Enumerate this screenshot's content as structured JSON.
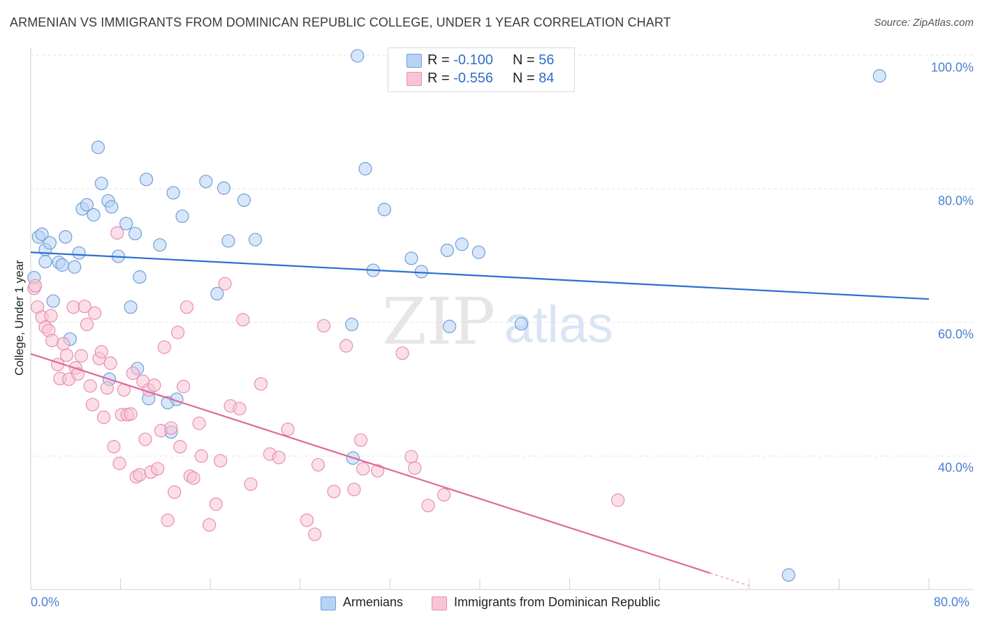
{
  "header": {
    "title": "ARMENIAN VS IMMIGRANTS FROM DOMINICAN REPUBLIC COLLEGE, UNDER 1 YEAR CORRELATION CHART",
    "source": "Source: ZipAtlas.com"
  },
  "watermark": {
    "zip": "ZIP",
    "atlas": "atlas"
  },
  "legend": {
    "rows": [
      {
        "r_label": "R = ",
        "r_value": "-0.100",
        "n_label": "N = ",
        "n_value": "56"
      },
      {
        "r_label": "R = ",
        "r_value": "-0.556",
        "n_label": "N = ",
        "n_value": "84"
      }
    ]
  },
  "bottom_legend": {
    "series1": "Armenians",
    "series2": "Immigrants from Dominican Republic"
  },
  "axes": {
    "ylabel": "College, Under 1 year",
    "yticks": [
      "100.0%",
      "80.0%",
      "60.0%",
      "40.0%"
    ],
    "xticks": [
      "0.0%",
      "80.0%"
    ]
  },
  "colors": {
    "blue_fill": "#b8d2f4",
    "blue_stroke": "#6f9fd8",
    "blue_line": "#2a6fcf",
    "pink_fill": "#f8c5d6",
    "pink_stroke": "#e98eae",
    "pink_line": "#e0679a",
    "tick_text": "#4a7fd4"
  },
  "chart_data": {
    "type": "scatter",
    "xlim": [
      0,
      80
    ],
    "ylim": [
      21,
      104
    ],
    "grid": true,
    "legend_position": "top-center",
    "series": [
      {
        "name": "Armenians",
        "color": "blue",
        "trend": {
          "x": [
            0,
            80
          ],
          "y": [
            70.5,
            63.5
          ]
        },
        "points": [
          [
            0.3,
            66.7
          ],
          [
            0.7,
            72.8
          ],
          [
            1.0,
            73.2
          ],
          [
            1.3,
            70.9
          ],
          [
            1.7,
            71.9
          ],
          [
            2.0,
            63.2
          ],
          [
            2.5,
            69.0
          ],
          [
            2.8,
            68.6
          ],
          [
            3.1,
            72.8
          ],
          [
            3.5,
            57.5
          ],
          [
            3.9,
            68.3
          ],
          [
            4.3,
            70.4
          ],
          [
            4.6,
            77.0
          ],
          [
            5.0,
            77.6
          ],
          [
            5.6,
            76.1
          ],
          [
            6.0,
            86.2
          ],
          [
            6.3,
            80.8
          ],
          [
            6.9,
            78.2
          ],
          [
            7.2,
            77.3
          ],
          [
            7.8,
            69.9
          ],
          [
            8.5,
            74.8
          ],
          [
            8.9,
            62.3
          ],
          [
            9.3,
            73.3
          ],
          [
            9.7,
            66.8
          ],
          [
            10.3,
            81.4
          ],
          [
            11.5,
            71.6
          ],
          [
            12.7,
            79.4
          ],
          [
            13.5,
            75.9
          ],
          [
            15.6,
            81.1
          ],
          [
            16.6,
            64.3
          ],
          [
            17.2,
            80.1
          ],
          [
            17.6,
            72.2
          ],
          [
            19.0,
            78.3
          ],
          [
            20.0,
            72.4
          ],
          [
            29.8,
            83.0
          ],
          [
            30.5,
            67.8
          ],
          [
            28.6,
            59.7
          ],
          [
            29.1,
            99.9
          ],
          [
            31.5,
            76.9
          ],
          [
            33.9,
            69.6
          ],
          [
            34.8,
            67.6
          ],
          [
            37.1,
            70.8
          ],
          [
            38.4,
            71.7
          ],
          [
            39.9,
            70.5
          ],
          [
            37.3,
            59.4
          ],
          [
            43.7,
            59.8
          ],
          [
            7.0,
            51.5
          ],
          [
            9.5,
            53.1
          ],
          [
            10.5,
            48.6
          ],
          [
            12.2,
            48.0
          ],
          [
            13.0,
            48.5
          ],
          [
            12.5,
            43.6
          ],
          [
            28.7,
            39.7
          ],
          [
            75.6,
            96.9
          ],
          [
            67.5,
            22.2
          ],
          [
            1.3,
            69.1
          ]
        ]
      },
      {
        "name": "Immigrants from Dominican Republic",
        "color": "pink",
        "trend": {
          "x": [
            0,
            60.5
          ],
          "y": [
            55.3,
            22.5
          ]
        },
        "points": [
          [
            0.3,
            65.1
          ],
          [
            0.6,
            62.3
          ],
          [
            1.0,
            60.8
          ],
          [
            1.3,
            59.3
          ],
          [
            1.6,
            58.8
          ],
          [
            1.9,
            57.3
          ],
          [
            2.4,
            53.7
          ],
          [
            2.6,
            51.6
          ],
          [
            2.9,
            56.8
          ],
          [
            3.2,
            55.1
          ],
          [
            3.4,
            51.5
          ],
          [
            3.8,
            62.3
          ],
          [
            4.0,
            53.2
          ],
          [
            4.2,
            52.3
          ],
          [
            4.5,
            55.0
          ],
          [
            4.8,
            62.4
          ],
          [
            5.0,
            59.7
          ],
          [
            5.3,
            50.5
          ],
          [
            5.5,
            47.7
          ],
          [
            5.7,
            61.4
          ],
          [
            6.1,
            54.6
          ],
          [
            6.3,
            55.6
          ],
          [
            6.5,
            45.8
          ],
          [
            6.8,
            50.2
          ],
          [
            7.1,
            53.9
          ],
          [
            7.4,
            41.4
          ],
          [
            7.7,
            73.4
          ],
          [
            7.9,
            38.9
          ],
          [
            8.1,
            46.2
          ],
          [
            8.3,
            49.9
          ],
          [
            8.6,
            46.2
          ],
          [
            8.9,
            46.3
          ],
          [
            9.1,
            52.4
          ],
          [
            9.4,
            36.9
          ],
          [
            9.7,
            37.2
          ],
          [
            10.0,
            51.2
          ],
          [
            10.2,
            42.5
          ],
          [
            10.5,
            49.9
          ],
          [
            10.7,
            37.6
          ],
          [
            11.0,
            50.6
          ],
          [
            11.3,
            38.1
          ],
          [
            11.6,
            43.8
          ],
          [
            11.9,
            56.3
          ],
          [
            12.2,
            30.4
          ],
          [
            12.5,
            44.2
          ],
          [
            12.8,
            34.6
          ],
          [
            13.1,
            58.5
          ],
          [
            13.3,
            41.4
          ],
          [
            13.6,
            50.4
          ],
          [
            13.9,
            62.3
          ],
          [
            14.2,
            37.0
          ],
          [
            14.5,
            36.7
          ],
          [
            15.0,
            44.9
          ],
          [
            15.2,
            40.0
          ],
          [
            15.9,
            29.7
          ],
          [
            16.5,
            32.8
          ],
          [
            16.9,
            39.3
          ],
          [
            17.3,
            65.8
          ],
          [
            17.8,
            47.5
          ],
          [
            18.6,
            47.1
          ],
          [
            18.9,
            60.4
          ],
          [
            19.6,
            35.8
          ],
          [
            20.5,
            50.8
          ],
          [
            21.3,
            40.3
          ],
          [
            22.1,
            39.8
          ],
          [
            22.9,
            44.0
          ],
          [
            24.6,
            30.4
          ],
          [
            25.3,
            28.3
          ],
          [
            25.6,
            38.7
          ],
          [
            26.1,
            59.5
          ],
          [
            27.0,
            34.7
          ],
          [
            28.1,
            56.5
          ],
          [
            28.8,
            35.0
          ],
          [
            29.4,
            42.4
          ],
          [
            29.6,
            38.1
          ],
          [
            30.9,
            37.8
          ],
          [
            33.1,
            55.4
          ],
          [
            33.9,
            39.9
          ],
          [
            34.2,
            38.2
          ],
          [
            35.4,
            32.6
          ],
          [
            36.8,
            34.2
          ],
          [
            52.3,
            33.4
          ],
          [
            0.4,
            65.5
          ],
          [
            1.8,
            61.0
          ]
        ]
      }
    ]
  }
}
